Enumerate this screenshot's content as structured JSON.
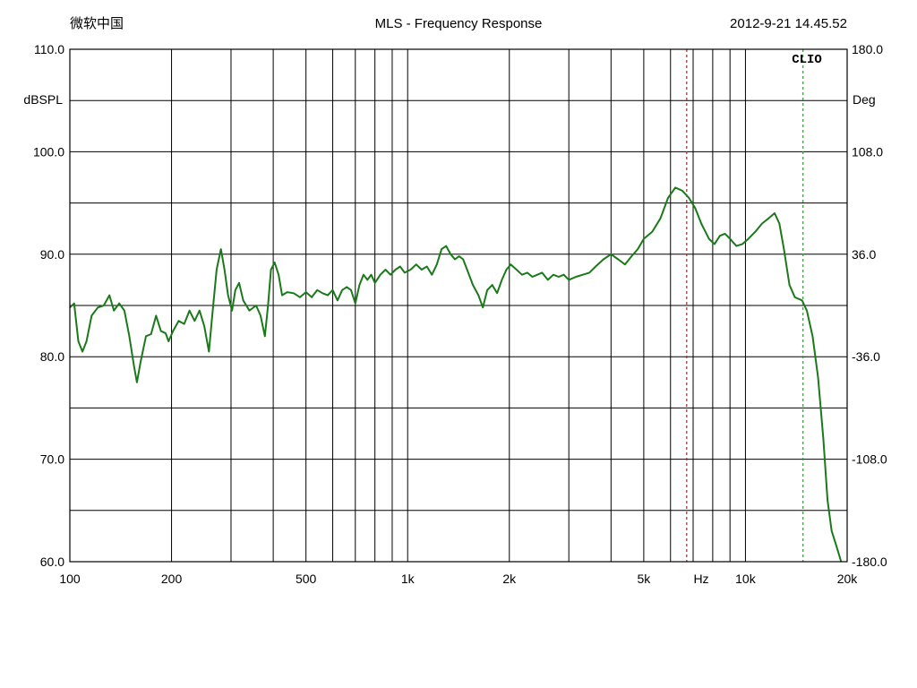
{
  "header": {
    "left": "微软中国",
    "title": "MLS - Frequency Response",
    "timestamp": "2012-9-21 14.45.52"
  },
  "brand": "CLIO",
  "colors": {
    "curve": "#1a7a1a",
    "marker1": "#b22222",
    "marker2": "#2e9e2e",
    "grid": "#000000"
  },
  "chart_data": {
    "type": "line",
    "title": "MLS - Frequency Response",
    "xscale": "log",
    "xlim": [
      100,
      20000
    ],
    "ylim": [
      60,
      110
    ],
    "y2lim": [
      -180,
      180
    ],
    "ylabel": "dBSPL",
    "y2label": "Deg",
    "xunit_label": "Hz",
    "grid": true,
    "x_major_lines": [
      100,
      200,
      300,
      400,
      500,
      600,
      700,
      800,
      900,
      1000,
      2000,
      3000,
      4000,
      5000,
      6000,
      7000,
      8000,
      9000,
      10000,
      20000
    ],
    "y_grid_lines": [
      60,
      65,
      70,
      75,
      80,
      85,
      90,
      95,
      100,
      105,
      110
    ],
    "x_tick_labels": [
      {
        "value": 100,
        "label": "100"
      },
      {
        "value": 200,
        "label": "200"
      },
      {
        "value": 500,
        "label": "500"
      },
      {
        "value": 1000,
        "label": "1k"
      },
      {
        "value": 2000,
        "label": "2k"
      },
      {
        "value": 5000,
        "label": "5k"
      },
      {
        "value": 10000,
        "label": "10k"
      },
      {
        "value": 20000,
        "label": "20k"
      }
    ],
    "y_tick_labels": [
      {
        "value": 110,
        "label": "110.0"
      },
      {
        "value": 100,
        "label": "100.0"
      },
      {
        "value": 90,
        "label": "90.0"
      },
      {
        "value": 80,
        "label": "80.0"
      },
      {
        "value": 70,
        "label": "70.0"
      },
      {
        "value": 60,
        "label": "60.0"
      }
    ],
    "y2_tick_labels": [
      {
        "value": 180,
        "label": "180.0"
      },
      {
        "value": 108,
        "label": "108.0"
      },
      {
        "value": 36,
        "label": "36.0"
      },
      {
        "value": -36,
        "label": "-36.0"
      },
      {
        "value": -108,
        "label": "-108.0"
      },
      {
        "value": -180,
        "label": "-180.0"
      }
    ],
    "markers": [
      {
        "x": 6700,
        "style": "dotted",
        "color": "#b22222"
      },
      {
        "x": 14800,
        "style": "dotted",
        "color": "#2e9e2e"
      }
    ],
    "series": [
      {
        "color": "#1a7a1a",
        "points": [
          [
            100,
            84.8
          ],
          [
            103,
            85.2
          ],
          [
            106,
            81.5
          ],
          [
            109,
            80.5
          ],
          [
            112,
            81.5
          ],
          [
            116,
            84.0
          ],
          [
            121,
            84.8
          ],
          [
            126,
            85.0
          ],
          [
            131,
            86.0
          ],
          [
            135,
            84.5
          ],
          [
            140,
            85.2
          ],
          [
            145,
            84.5
          ],
          [
            150,
            82.0
          ],
          [
            155,
            79.0
          ],
          [
            158,
            77.5
          ],
          [
            162,
            79.5
          ],
          [
            168,
            82.0
          ],
          [
            174,
            82.2
          ],
          [
            180,
            84.0
          ],
          [
            186,
            82.5
          ],
          [
            192,
            82.3
          ],
          [
            196,
            81.5
          ],
          [
            202,
            82.5
          ],
          [
            210,
            83.5
          ],
          [
            218,
            83.2
          ],
          [
            226,
            84.5
          ],
          [
            234,
            83.5
          ],
          [
            242,
            84.5
          ],
          [
            250,
            83.0
          ],
          [
            258,
            80.5
          ],
          [
            264,
            84.0
          ],
          [
            272,
            88.5
          ],
          [
            280,
            90.5
          ],
          [
            287,
            88.5
          ],
          [
            294,
            86.0
          ],
          [
            302,
            84.5
          ],
          [
            309,
            86.5
          ],
          [
            317,
            87.2
          ],
          [
            326,
            85.5
          ],
          [
            340,
            84.5
          ],
          [
            356,
            85.0
          ],
          [
            367,
            84.0
          ],
          [
            378,
            82.0
          ],
          [
            386,
            85.0
          ],
          [
            394,
            88.5
          ],
          [
            404,
            89.2
          ],
          [
            415,
            88.0
          ],
          [
            425,
            86.0
          ],
          [
            440,
            86.3
          ],
          [
            460,
            86.2
          ],
          [
            480,
            85.8
          ],
          [
            500,
            86.3
          ],
          [
            520,
            85.8
          ],
          [
            540,
            86.5
          ],
          [
            560,
            86.2
          ],
          [
            580,
            86.0
          ],
          [
            600,
            86.5
          ],
          [
            620,
            85.5
          ],
          [
            640,
            86.5
          ],
          [
            660,
            86.8
          ],
          [
            680,
            86.5
          ],
          [
            700,
            85.2
          ],
          [
            720,
            87.0
          ],
          [
            740,
            88.0
          ],
          [
            760,
            87.5
          ],
          [
            780,
            88.0
          ],
          [
            800,
            87.2
          ],
          [
            830,
            88.0
          ],
          [
            860,
            88.5
          ],
          [
            890,
            88.0
          ],
          [
            920,
            88.5
          ],
          [
            950,
            88.8
          ],
          [
            980,
            88.2
          ],
          [
            1020,
            88.5
          ],
          [
            1060,
            89.0
          ],
          [
            1100,
            88.5
          ],
          [
            1140,
            88.8
          ],
          [
            1180,
            88.0
          ],
          [
            1220,
            89.0
          ],
          [
            1260,
            90.5
          ],
          [
            1300,
            90.8
          ],
          [
            1340,
            90.0
          ],
          [
            1380,
            89.5
          ],
          [
            1420,
            89.8
          ],
          [
            1460,
            89.5
          ],
          [
            1500,
            88.5
          ],
          [
            1560,
            87.0
          ],
          [
            1620,
            86.0
          ],
          [
            1670,
            84.8
          ],
          [
            1720,
            86.5
          ],
          [
            1780,
            87.0
          ],
          [
            1840,
            86.2
          ],
          [
            1900,
            87.5
          ],
          [
            1960,
            88.5
          ],
          [
            2020,
            89.0
          ],
          [
            2100,
            88.5
          ],
          [
            2180,
            88.0
          ],
          [
            2260,
            88.2
          ],
          [
            2340,
            87.8
          ],
          [
            2420,
            88.0
          ],
          [
            2500,
            88.2
          ],
          [
            2600,
            87.5
          ],
          [
            2700,
            88.0
          ],
          [
            2800,
            87.8
          ],
          [
            2900,
            88.0
          ],
          [
            3000,
            87.5
          ],
          [
            3150,
            87.8
          ],
          [
            3300,
            88.0
          ],
          [
            3450,
            88.2
          ],
          [
            3600,
            88.8
          ],
          [
            3800,
            89.5
          ],
          [
            4000,
            90.0
          ],
          [
            4200,
            89.5
          ],
          [
            4400,
            89.0
          ],
          [
            4600,
            89.8
          ],
          [
            4800,
            90.5
          ],
          [
            5000,
            91.5
          ],
          [
            5300,
            92.2
          ],
          [
            5600,
            93.5
          ],
          [
            5900,
            95.5
          ],
          [
            6200,
            96.5
          ],
          [
            6500,
            96.2
          ],
          [
            6800,
            95.5
          ],
          [
            7100,
            94.5
          ],
          [
            7400,
            93.0
          ],
          [
            7800,
            91.5
          ],
          [
            8100,
            91.0
          ],
          [
            8400,
            91.8
          ],
          [
            8700,
            92.0
          ],
          [
            9000,
            91.5
          ],
          [
            9400,
            90.8
          ],
          [
            9800,
            91.0
          ],
          [
            10200,
            91.5
          ],
          [
            10700,
            92.2
          ],
          [
            11200,
            93.0
          ],
          [
            11700,
            93.5
          ],
          [
            12200,
            94.0
          ],
          [
            12600,
            93.0
          ],
          [
            13000,
            90.5
          ],
          [
            13500,
            87.0
          ],
          [
            14000,
            85.8
          ],
          [
            14700,
            85.5
          ],
          [
            15200,
            84.5
          ],
          [
            15800,
            82.0
          ],
          [
            16400,
            78.0
          ],
          [
            17000,
            72.0
          ],
          [
            17500,
            66.0
          ],
          [
            18000,
            63.0
          ],
          [
            18600,
            61.5
          ],
          [
            19200,
            60.0
          ]
        ]
      }
    ]
  }
}
